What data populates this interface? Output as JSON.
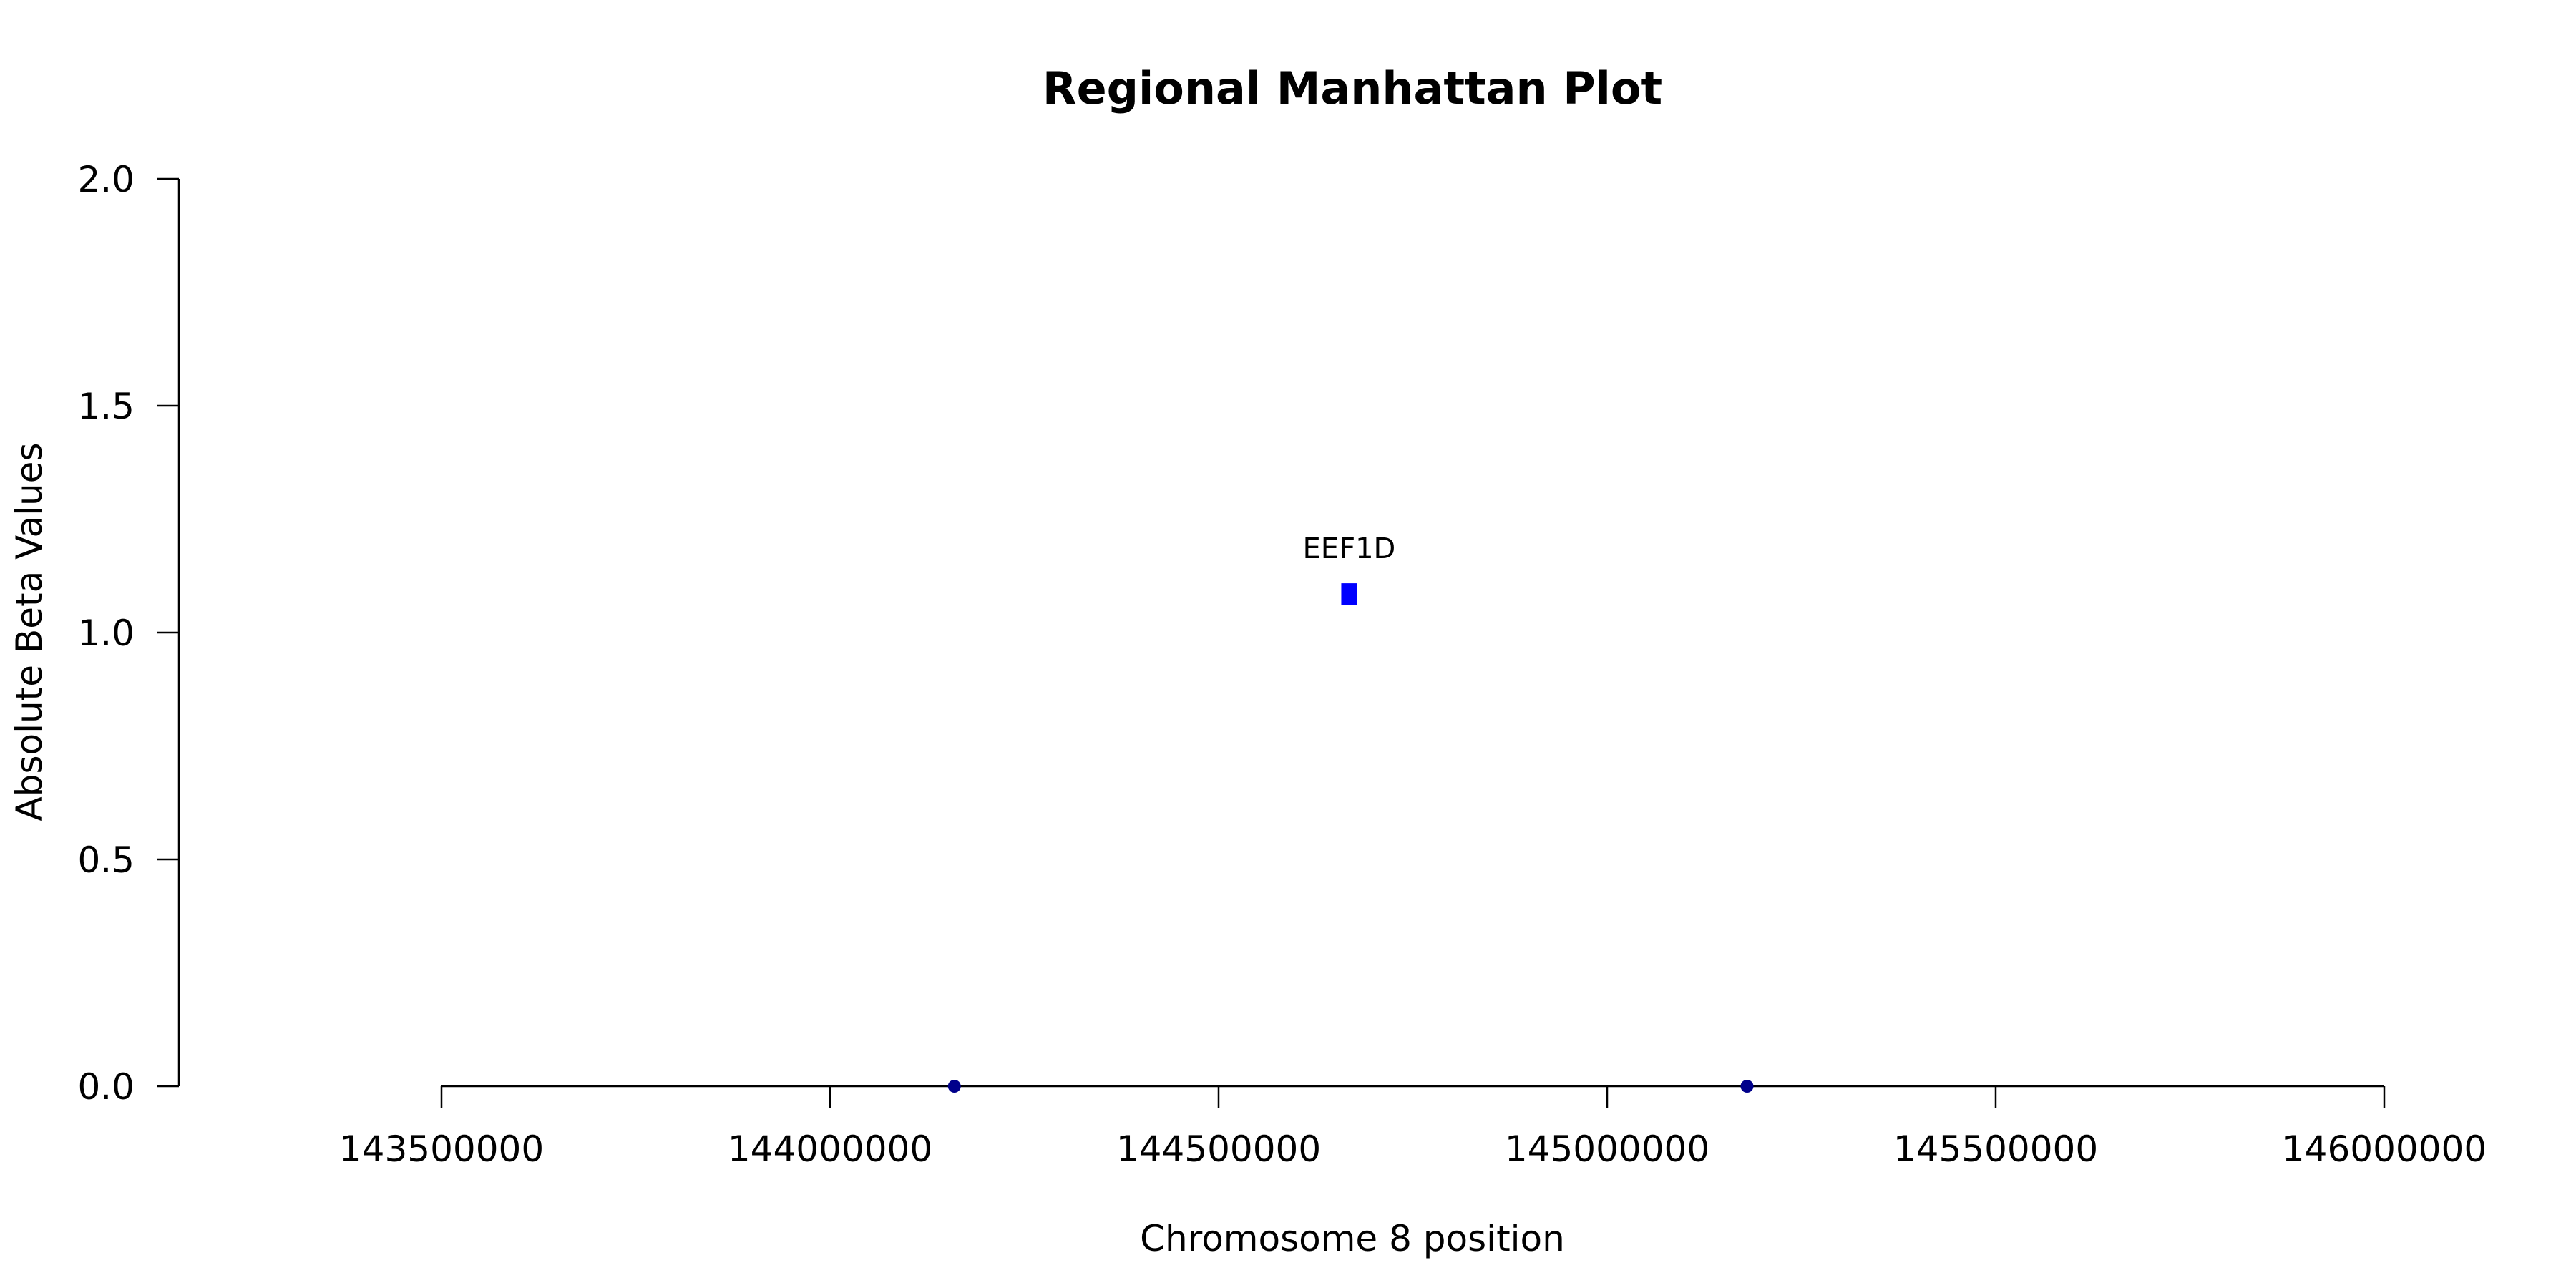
{
  "chart_data": {
    "type": "scatter",
    "title": "Regional Manhattan Plot",
    "xlabel": "Chromosome 8 position",
    "ylabel": "Absolute Beta Values",
    "xlim": [
      143500000,
      146000000
    ],
    "ylim": [
      0,
      2
    ],
    "xticks": [
      143500000,
      144000000,
      144500000,
      145000000,
      145500000,
      146000000
    ],
    "xtick_labels": [
      "143500000",
      "144000000",
      "144500000",
      "145000000",
      "145500000",
      "146000000"
    ],
    "yticks": [
      0,
      0.5,
      1,
      1.5,
      2
    ],
    "ytick_labels": [
      "0.0",
      "0.5",
      "1.0",
      "1.5",
      "2.0"
    ],
    "grid": false,
    "points": [
      {
        "x": 144160000,
        "y": 0.0,
        "shape": "circle",
        "color": "#00008b"
      },
      {
        "x": 144668000,
        "y": 1.085,
        "shape": "square",
        "color": "#0000ff",
        "label": "EEF1D"
      },
      {
        "x": 145180000,
        "y": 0.0,
        "shape": "circle",
        "color": "#00008b"
      }
    ]
  }
}
